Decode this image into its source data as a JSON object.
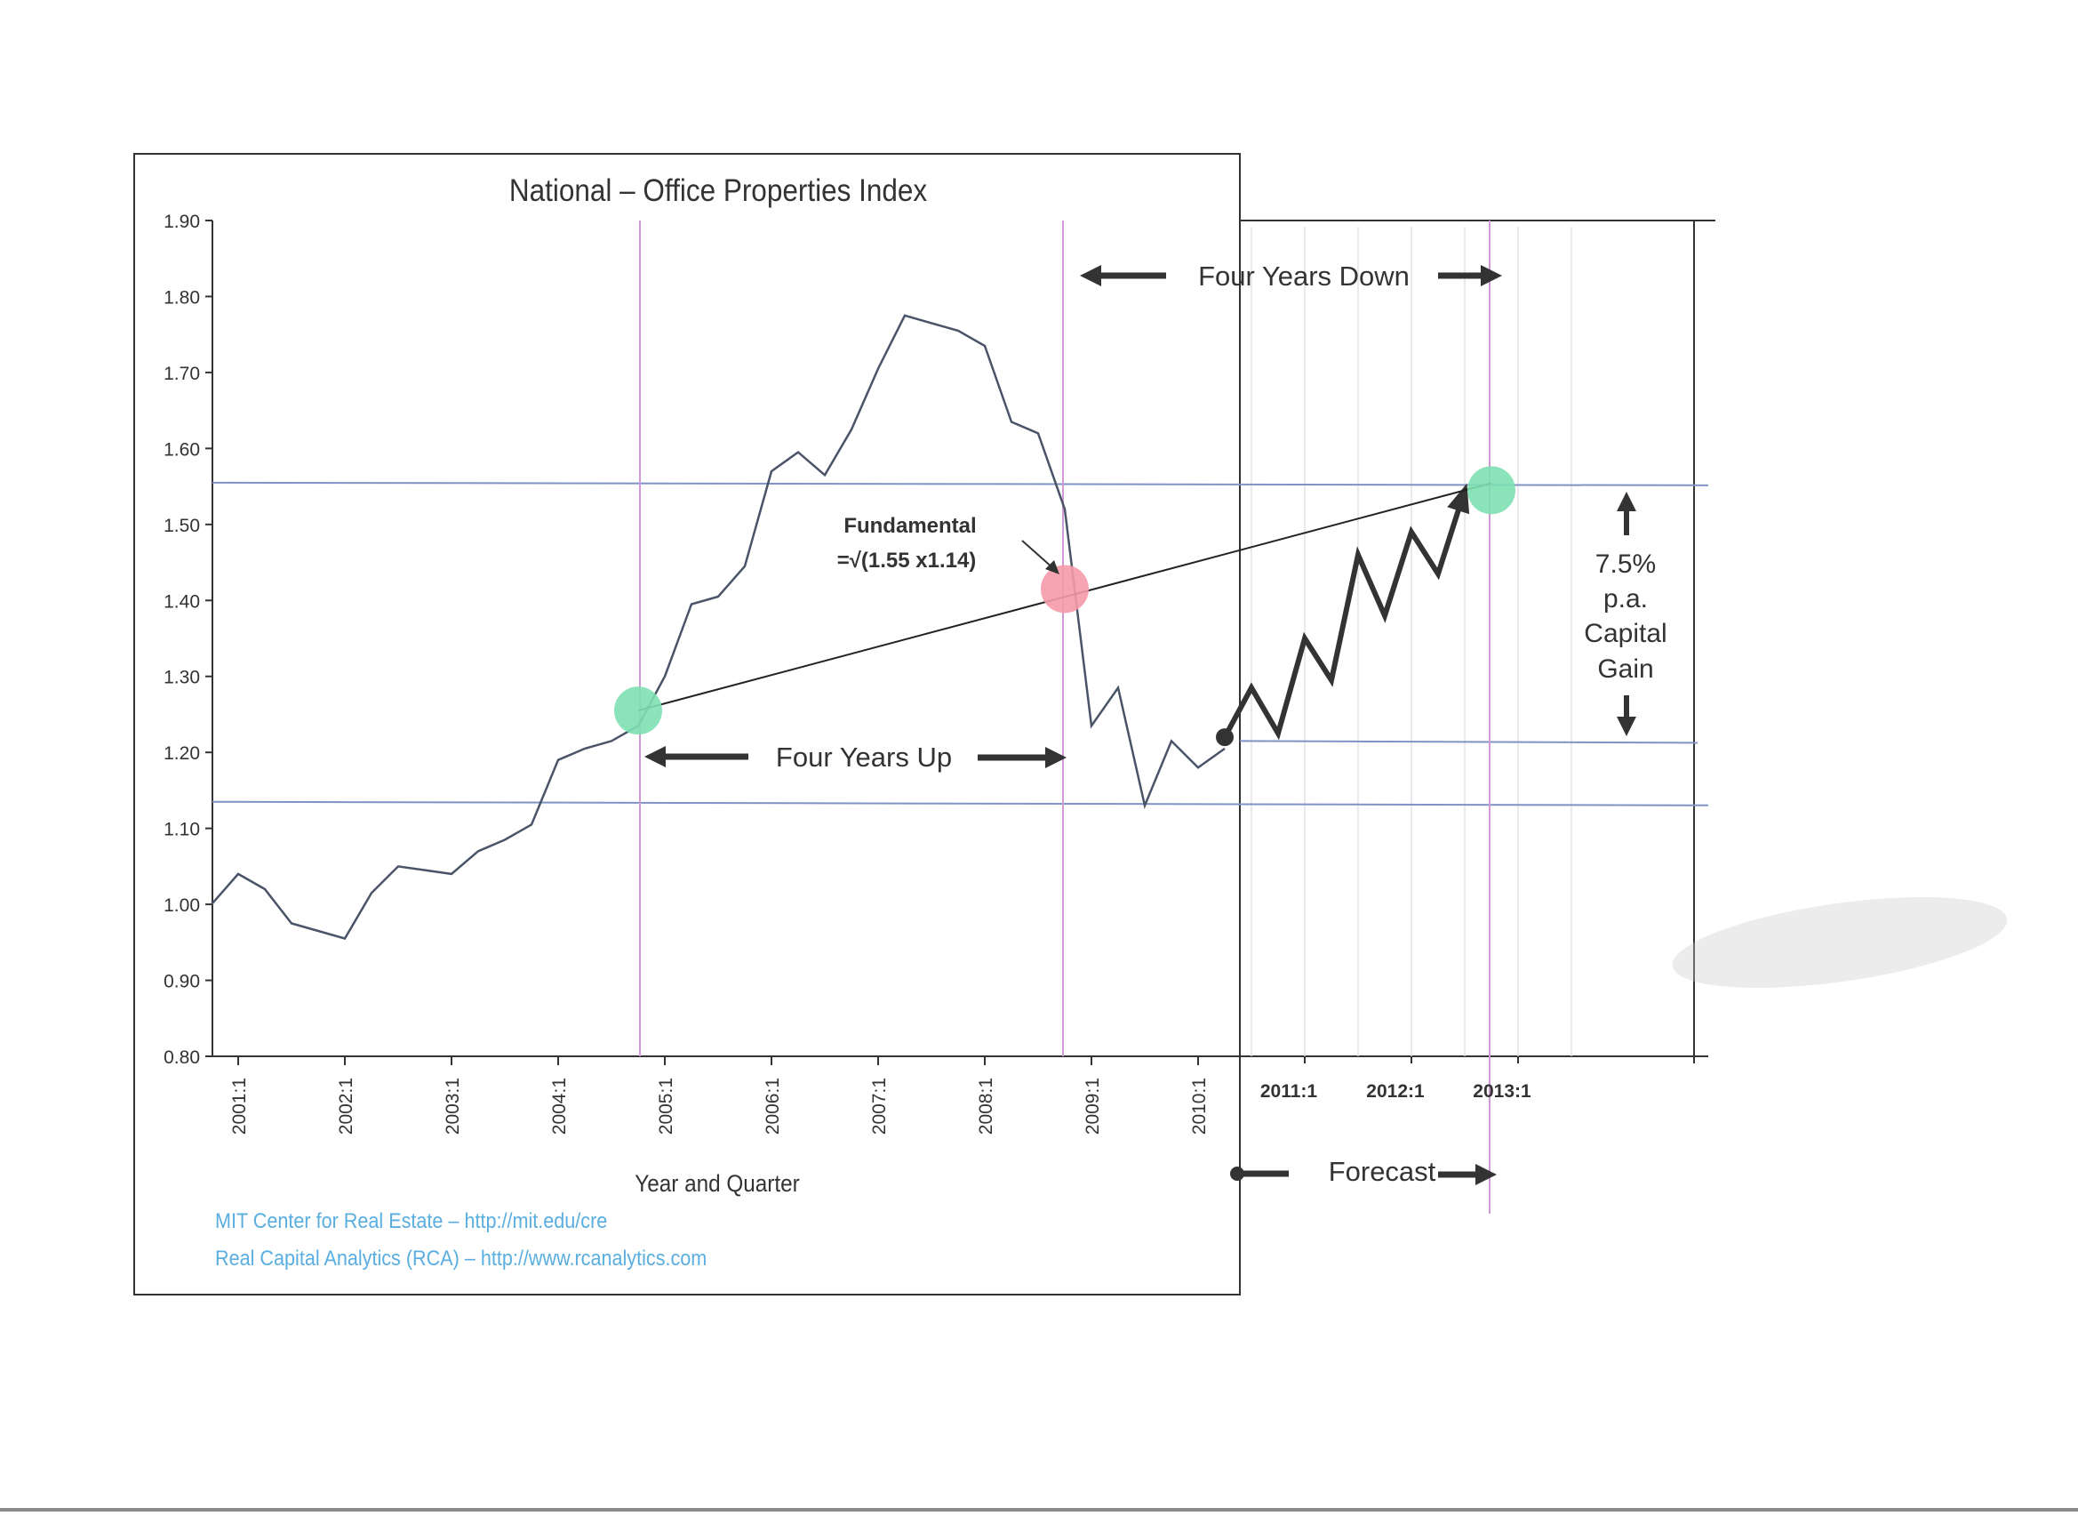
{
  "chart_data": {
    "type": "line",
    "title": "National – Office Properties Index",
    "xlabel": "Year and Quarter",
    "ylabel": "",
    "ylim": [
      0.8,
      1.9
    ],
    "yticks": [
      "0.80",
      "0.90",
      "1.00",
      "1.10",
      "1.20",
      "1.30",
      "1.40",
      "1.50",
      "1.60",
      "1.70",
      "1.80",
      "1.90"
    ],
    "xticks": [
      "2001:1",
      "2002:1",
      "2003:1",
      "2004:1",
      "2005:1",
      "2006:1",
      "2007:1",
      "2008:1",
      "2009:1",
      "2010:1"
    ],
    "forecast_xticks": [
      "2011:1",
      "2012:1",
      "2013:1"
    ],
    "grid": false,
    "series": [
      {
        "values": [
          [
            "2000:4",
            1.0
          ],
          [
            "2001:1",
            1.04
          ],
          [
            "2001:2",
            1.02
          ],
          [
            "2001:3",
            0.975
          ],
          [
            "2001:4",
            0.965
          ],
          [
            "2002:1",
            0.955
          ],
          [
            "2002:2",
            1.015
          ],
          [
            "2002:3",
            1.05
          ],
          [
            "2002:4",
            1.045
          ],
          [
            "2003:1",
            1.04
          ],
          [
            "2003:2",
            1.07
          ],
          [
            "2003:3",
            1.085
          ],
          [
            "2003:4",
            1.105
          ],
          [
            "2004:1",
            1.19
          ],
          [
            "2004:2",
            1.205
          ],
          [
            "2004:3",
            1.215
          ],
          [
            "2004:4",
            1.235
          ],
          [
            "2005:1",
            1.3
          ],
          [
            "2005:2",
            1.395
          ],
          [
            "2005:3",
            1.405
          ],
          [
            "2005:4",
            1.445
          ],
          [
            "2006:1",
            1.57
          ],
          [
            "2006:2",
            1.595
          ],
          [
            "2006:3",
            1.565
          ],
          [
            "2006:4",
            1.625
          ],
          [
            "2007:1",
            1.705
          ],
          [
            "2007:2",
            1.775
          ],
          [
            "2007:3",
            1.765
          ],
          [
            "2007:4",
            1.755
          ],
          [
            "2008:1",
            1.735
          ],
          [
            "2008:2",
            1.635
          ],
          [
            "2008:3",
            1.62
          ],
          [
            "2008:4",
            1.52
          ],
          [
            "2009:1",
            1.235
          ],
          [
            "2009:2",
            1.285
          ],
          [
            "2009:3",
            1.13
          ],
          [
            "2009:4",
            1.215
          ],
          [
            "2010:1",
            1.18
          ],
          [
            "2010:2",
            1.205
          ]
        ]
      }
    ],
    "forecast_series": {
      "values": [
        [
          "2010:2",
          1.22
        ],
        [
          "2010:3",
          1.285
        ],
        [
          "2010:4",
          1.225
        ],
        [
          "2011:1",
          1.35
        ],
        [
          "2011:2",
          1.295
        ],
        [
          "2011:3",
          1.46
        ],
        [
          "2011:4",
          1.38
        ],
        [
          "2012:1",
          1.49
        ],
        [
          "2012:2",
          1.435
        ],
        [
          "2012:3",
          1.545
        ]
      ]
    },
    "reference_lines": {
      "horizontal": [
        1.555,
        1.135,
        1.215
      ],
      "vertical": [
        "2004:4",
        "2008:4",
        "2012:4"
      ]
    },
    "markers": [
      {
        "x": "2004:4",
        "y": 1.255,
        "color": "#7ee0b2"
      },
      {
        "x": "2008:4",
        "y": 1.415,
        "color": "#f59aa8"
      },
      {
        "x": "2012:4",
        "y": 1.545,
        "color": "#7ee0b2"
      }
    ],
    "annotations": {
      "four_years_up": "Four Years Up",
      "four_years_down": "Four Years Down",
      "forecast": "Forecast",
      "fundamental_line1": "Fundamental",
      "fundamental_line2": "=√(1.55 x1.14)",
      "gain_lines": [
        "7.5%",
        "p.a.",
        "Capital",
        "Gain"
      ]
    },
    "sources": [
      "MIT Center for Real Estate – http://mit.edu/cre",
      "Real Capital Analytics (RCA) – http://www.rcanalytics.com"
    ],
    "colors": {
      "series": "#4a5468",
      "forecast": "#333333",
      "trend": "#222222",
      "hline": "#7f93c4",
      "vline": "#cf9ad6",
      "source_text": "#5aaee0",
      "frame": "#333333"
    }
  }
}
